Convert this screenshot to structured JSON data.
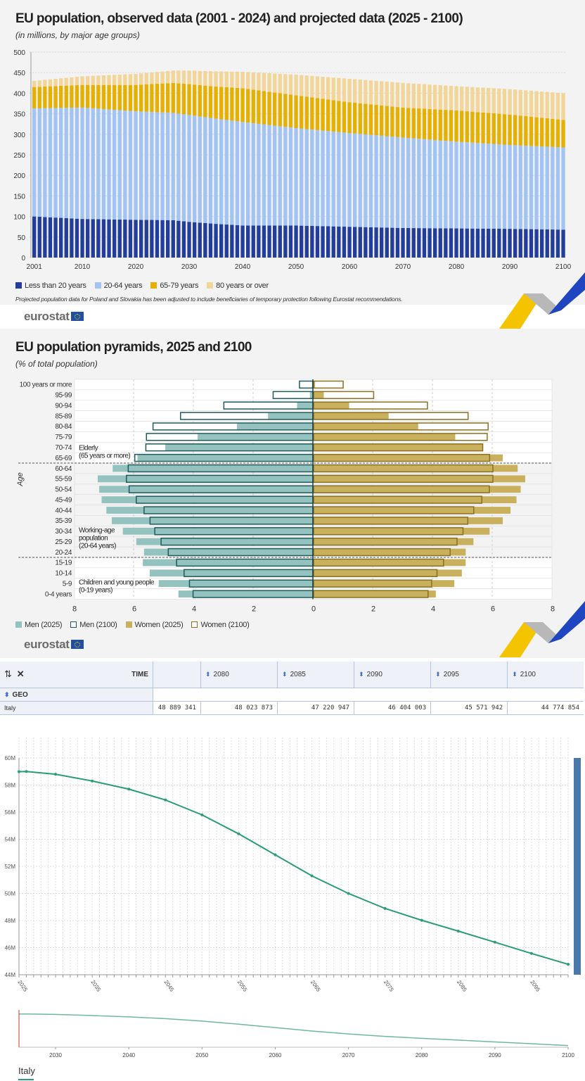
{
  "chart1": {
    "title": "EU population, observed data (2001 - 2024) and projected data (2025 - 2100)",
    "subtitle": "(in millions, by major age groups)",
    "note": "Projected population data for Poland and Slovakia has been adjusted to include beneficiaries of temporary protection following Eurostat recommendations.",
    "logo": "eurostat"
  },
  "chart2": {
    "title": "EU population pyramids, 2025 and 2100",
    "subtitle": "(% of total population)",
    "ylabel": "Age",
    "logo": "eurostat",
    "annotations": {
      "elderly": [
        "Elderly",
        "(65 years or more)"
      ],
      "working": [
        "Working-age",
        "population",
        "(20-64 years)"
      ],
      "children": [
        "Children and young people",
        "(0-19 years)"
      ]
    }
  },
  "table": {
    "time_label": "TIME",
    "geo_label": "GEO",
    "icons": [
      "swap-icon",
      "expand-icon"
    ],
    "columns": [
      "",
      "2080",
      "2085",
      "2090",
      "2095",
      "2100"
    ],
    "rows": [
      {
        "geo": "Italy",
        "values": [
          "48 889 341",
          "48 023 873",
          "47 220 947",
          "46 404 003",
          "45 571 942",
          "44 774 854"
        ]
      }
    ]
  },
  "chart_data": [
    {
      "type": "bar",
      "stacked": true,
      "x_range": [
        2001,
        2100
      ],
      "x": [
        2001,
        2010,
        2020,
        2027,
        2030,
        2035,
        2040,
        2050,
        2060,
        2070,
        2080,
        2090,
        2100
      ],
      "xticks": [
        "2001",
        "2010",
        "2020",
        "2030",
        "2040",
        "2050",
        "2060",
        "2070",
        "2080",
        "2090",
        "2100"
      ],
      "ylim": [
        0,
        500
      ],
      "yticks": [
        "0",
        "50",
        "100",
        "150",
        "200",
        "250",
        "300",
        "350",
        "400",
        "450",
        "500"
      ],
      "grid": "horizontal dashed",
      "legend_position": "bottom-left",
      "series": [
        {
          "name": "Less than 20 years",
          "color": "#233d9b",
          "values": [
            100,
            94,
            92,
            91,
            87,
            82,
            78,
            78,
            75,
            72,
            71,
            70,
            68
          ]
        },
        {
          "name": "20-64 years",
          "color": "#a3c4f3",
          "values": [
            263,
            271,
            264,
            261,
            260,
            256,
            252,
            237,
            228,
            220,
            211,
            204,
            200
          ]
        },
        {
          "name": "65-79 years",
          "color": "#e5b000",
          "values": [
            52,
            55,
            64,
            73,
            75,
            78,
            82,
            80,
            75,
            73,
            76,
            74,
            67
          ]
        },
        {
          "name": "80 years or over",
          "color": "#f2d598",
          "values": [
            15,
            21,
            27,
            30,
            33,
            37,
            40,
            50,
            57,
            60,
            59,
            62,
            65
          ]
        }
      ]
    },
    {
      "type": "bar",
      "orientation": "horizontal-pyramid",
      "categories": [
        "100 years or more",
        "95-99",
        "90-94",
        "85-89",
        "80-84",
        "75-79",
        "70-74",
        "65-69",
        "60-64",
        "55-59",
        "50-54",
        "45-49",
        "40-44",
        "35-39",
        "30-34",
        "25-29",
        "20-24",
        "15-19",
        "10-14",
        "5-9",
        "0-4 years"
      ],
      "xlim": [
        -8,
        8
      ],
      "xticks": [
        "8",
        "6",
        "4",
        "2",
        "0",
        "2",
        "4",
        "6",
        "8"
      ],
      "legend_position": "bottom-left",
      "series": [
        {
          "name": "Men (2025)",
          "color": "#93c2bf",
          "style": "fill",
          "values": [
            0.03,
            0.1,
            0.53,
            1.5,
            2.54,
            3.86,
            4.94,
            5.87,
            6.7,
            7.2,
            7.15,
            7.07,
            6.91,
            6.73,
            6.36,
            5.91,
            5.65,
            5.69,
            5.46,
            5.16,
            4.5
          ]
        },
        {
          "name": "Men (2100)",
          "color": "#1f5a5e",
          "style": "outline",
          "values": [
            0.45,
            1.33,
            2.98,
            4.43,
            5.35,
            5.57,
            5.59,
            5.96,
            6.18,
            6.24,
            6.15,
            5.91,
            5.65,
            5.45,
            5.29,
            5.08,
            4.84,
            4.56,
            4.31,
            4.13,
            4.01
          ]
        },
        {
          "name": "Women (2025)",
          "color": "#c9b05c",
          "style": "fill",
          "values": [
            0.05,
            0.34,
            1.19,
            2.51,
            3.5,
            4.74,
            5.66,
            6.33,
            6.83,
            7.08,
            6.93,
            6.79,
            6.59,
            6.33,
            5.89,
            5.35,
            5.09,
            5.09,
            4.96,
            4.71,
            4.09
          ]
        },
        {
          "name": "Women (2100)",
          "color": "#8a7020",
          "style": "outline",
          "values": [
            0.99,
            2.01,
            3.81,
            5.17,
            5.84,
            5.81,
            5.66,
            5.89,
            6.0,
            6.0,
            5.88,
            5.63,
            5.36,
            5.16,
            5.0,
            4.8,
            4.57,
            4.35,
            4.13,
            3.95,
            3.83
          ]
        }
      ]
    },
    {
      "type": "line",
      "x_range": [
        2025,
        2100
      ],
      "x": [
        2025,
        2026,
        2030,
        2035,
        2040,
        2045,
        2050,
        2055,
        2060,
        2065,
        2070,
        2075,
        2080,
        2085,
        2090,
        2095,
        2100
      ],
      "xticks": [
        "2025",
        "2035",
        "2045",
        "2055",
        "2065",
        "2075",
        "2085",
        "2095"
      ],
      "ylim": [
        44,
        60
      ],
      "yunit": "M",
      "yticks": [
        "44M",
        "46M",
        "48M",
        "50M",
        "52M",
        "54M",
        "56M",
        "58M",
        "60M"
      ],
      "grid": true,
      "series": [
        {
          "name": "Italy",
          "color": "#2a9d74",
          "values": [
            58.99,
            59.0,
            58.8,
            58.3,
            57.7,
            56.9,
            55.8,
            54.4,
            52.85,
            51.3,
            50.0,
            48.89,
            48.02,
            47.22,
            46.4,
            45.57,
            44.77
          ]
        }
      ],
      "navigator": {
        "xticks": [
          "2030",
          "2040",
          "2050",
          "2060",
          "2070",
          "2080",
          "2090",
          "2100"
        ],
        "scrollbar_color": "#4a78a8"
      },
      "legend": "Italy"
    }
  ]
}
